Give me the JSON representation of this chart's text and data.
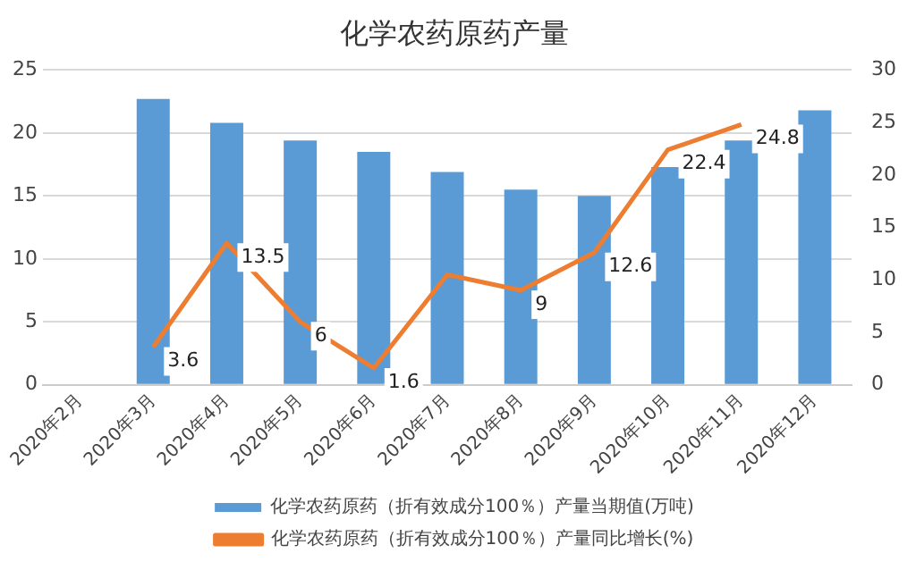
{
  "chart_data": {
    "type": "bar",
    "title": "化学农药原药产量",
    "categories": [
      "2020年2月",
      "2020年3月",
      "2020年4月",
      "2020年5月",
      "2020年6月",
      "2020年7月",
      "2020年8月",
      "2020年9月",
      "2020年10月",
      "2020年11月",
      "2020年12月"
    ],
    "series": [
      {
        "name": "化学农药原药（折有效成分100％）产量当期值(万吨)",
        "color": "#5b9bd5",
        "values": [
          null,
          22.7,
          20.8,
          19.4,
          18.5,
          16.9,
          15.5,
          15.0,
          17.3,
          19.4,
          21.8
        ]
      },
      {
        "name": "化学农药原药（折有效成分100％）产量同比增长(%)",
        "type": "line",
        "axis": "y2",
        "color": "#ed7d31",
        "values": [
          null,
          3.6,
          13.5,
          6,
          1.6,
          10.5,
          9,
          12.6,
          22.4,
          24.8,
          null
        ],
        "value_labels": [
          null,
          "3.6",
          "13.5",
          "6",
          "1.6",
          null,
          "9",
          "12.6",
          "22.4",
          "24.8",
          null
        ]
      }
    ],
    "ylim": [
      0,
      25
    ],
    "yticks": [
      0,
      5,
      10,
      15,
      20,
      25
    ],
    "y2lim": [
      0,
      30
    ],
    "y2ticks": [
      0,
      5,
      10,
      15,
      20,
      25,
      30
    ],
    "grid": "y",
    "legend": "bottom",
    "marker": "none"
  }
}
